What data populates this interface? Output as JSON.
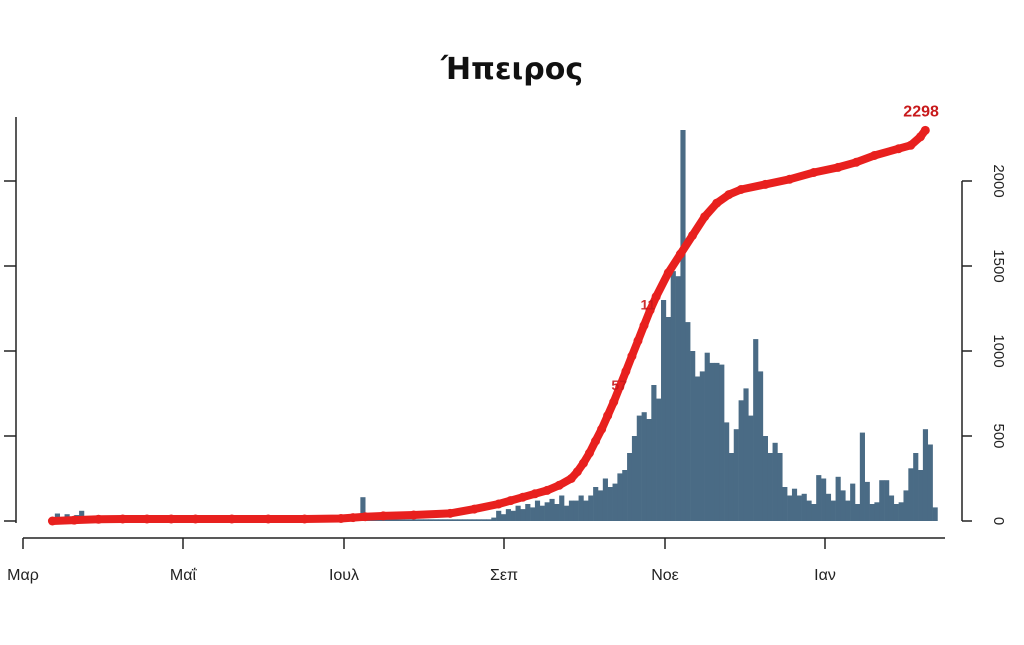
{
  "chart_data": {
    "type": "bar",
    "title": "Ήπειρος",
    "x_tick_labels": [
      "Μαρ",
      "Μαΐ",
      "Ιουλ",
      "Σεπ",
      "Νοε",
      "Ιαν"
    ],
    "left_axis": {
      "range": [
        0,
        2300
      ],
      "ticks": [
        0,
        500,
        1000,
        1500,
        2000
      ],
      "tick_labels": [
        "",
        "",
        "",
        "",
        ""
      ]
    },
    "right_axis": {
      "range": [
        0,
        2300
      ],
      "ticks": [
        0,
        500,
        1000,
        1500,
        2000
      ],
      "tick_labels": [
        "0",
        "500",
        "1000",
        "1500",
        "2000"
      ]
    },
    "grid": false,
    "bar_color": "#4a6b85",
    "line_color": "#e8201e",
    "label_color": "#c8191b",
    "bar_series": {
      "x_start": 4,
      "x_step": 4,
      "values": [
        44,
        20,
        40,
        20,
        35,
        60,
        20,
        10,
        10,
        10,
        10,
        10,
        10,
        10,
        10,
        10,
        10,
        10,
        10,
        10,
        10,
        10,
        10,
        10,
        10,
        10,
        10,
        10,
        10,
        10,
        10,
        10,
        10,
        10,
        10,
        10,
        10,
        10,
        10,
        10,
        10,
        10,
        10,
        10,
        10,
        10,
        10,
        10,
        10,
        10,
        10,
        10,
        10,
        10,
        10,
        10,
        10,
        10,
        10,
        10,
        10,
        10,
        10,
        140,
        10,
        10,
        10,
        10,
        10,
        10,
        10,
        10,
        10,
        10,
        10,
        10,
        10,
        10,
        10,
        10,
        10,
        10,
        10,
        10,
        10,
        10,
        10,
        10,
        10,
        10,
        20,
        60,
        40,
        70,
        60,
        90,
        70,
        100,
        80,
        120,
        90,
        110,
        130,
        100,
        150,
        90,
        120,
        120,
        150,
        120,
        150,
        200,
        180,
        250,
        200,
        220,
        280,
        300,
        400,
        500,
        620,
        640,
        600,
        800,
        720,
        1300,
        1200,
        1470,
        1440,
        2300,
        1170,
        1000,
        850,
        880,
        990,
        930,
        930,
        920,
        580,
        400,
        540,
        710,
        780,
        620,
        1070,
        880,
        500,
        400,
        460,
        400,
        200,
        150,
        190,
        150,
        160,
        120,
        100,
        270,
        250,
        160,
        120,
        260,
        180,
        120,
        220,
        100,
        520,
        230,
        100,
        110,
        240,
        240,
        150,
        100,
        110,
        180,
        310,
        400,
        300,
        540,
        450,
        80
      ]
    },
    "cumulative_series": {
      "points": [
        [
          2,
          0
        ],
        [
          20,
          5
        ],
        [
          40,
          10
        ],
        [
          60,
          12
        ],
        [
          80,
          12
        ],
        [
          100,
          12
        ],
        [
          120,
          12
        ],
        [
          150,
          12
        ],
        [
          180,
          12
        ],
        [
          210,
          12
        ],
        [
          240,
          15
        ],
        [
          250,
          20
        ],
        [
          260,
          25
        ],
        [
          275,
          30
        ],
        [
          300,
          35
        ],
        [
          330,
          45
        ],
        [
          350,
          70
        ],
        [
          370,
          100
        ],
        [
          380,
          120
        ],
        [
          390,
          140
        ],
        [
          400,
          160
        ],
        [
          410,
          180
        ],
        [
          420,
          210
        ],
        [
          430,
          250
        ],
        [
          435,
          290
        ],
        [
          440,
          340
        ],
        [
          445,
          400
        ],
        [
          450,
          470
        ],
        [
          455,
          540
        ],
        [
          460,
          620
        ],
        [
          465,
          700
        ],
        [
          470,
          790
        ],
        [
          475,
          880
        ],
        [
          480,
          970
        ],
        [
          485,
          1060
        ],
        [
          490,
          1150
        ],
        [
          495,
          1240
        ],
        [
          500,
          1320
        ],
        [
          510,
          1460
        ],
        [
          520,
          1570
        ],
        [
          530,
          1680
        ],
        [
          540,
          1790
        ],
        [
          550,
          1870
        ],
        [
          560,
          1920
        ],
        [
          570,
          1950
        ],
        [
          590,
          1980
        ],
        [
          610,
          2010
        ],
        [
          630,
          2050
        ],
        [
          650,
          2080
        ],
        [
          665,
          2110
        ],
        [
          680,
          2150
        ],
        [
          700,
          2190
        ],
        [
          710,
          2210
        ],
        [
          718,
          2260
        ],
        [
          722,
          2298
        ]
      ]
    },
    "annotations": [
      {
        "text": "2298",
        "x": 722,
        "y": 2298,
        "kind": "end"
      },
      {
        "text": "11",
        "x": 497,
        "y": 1275,
        "kind": "partial"
      },
      {
        "text": "57",
        "x": 473,
        "y": 800,
        "kind": "partial"
      }
    ]
  }
}
